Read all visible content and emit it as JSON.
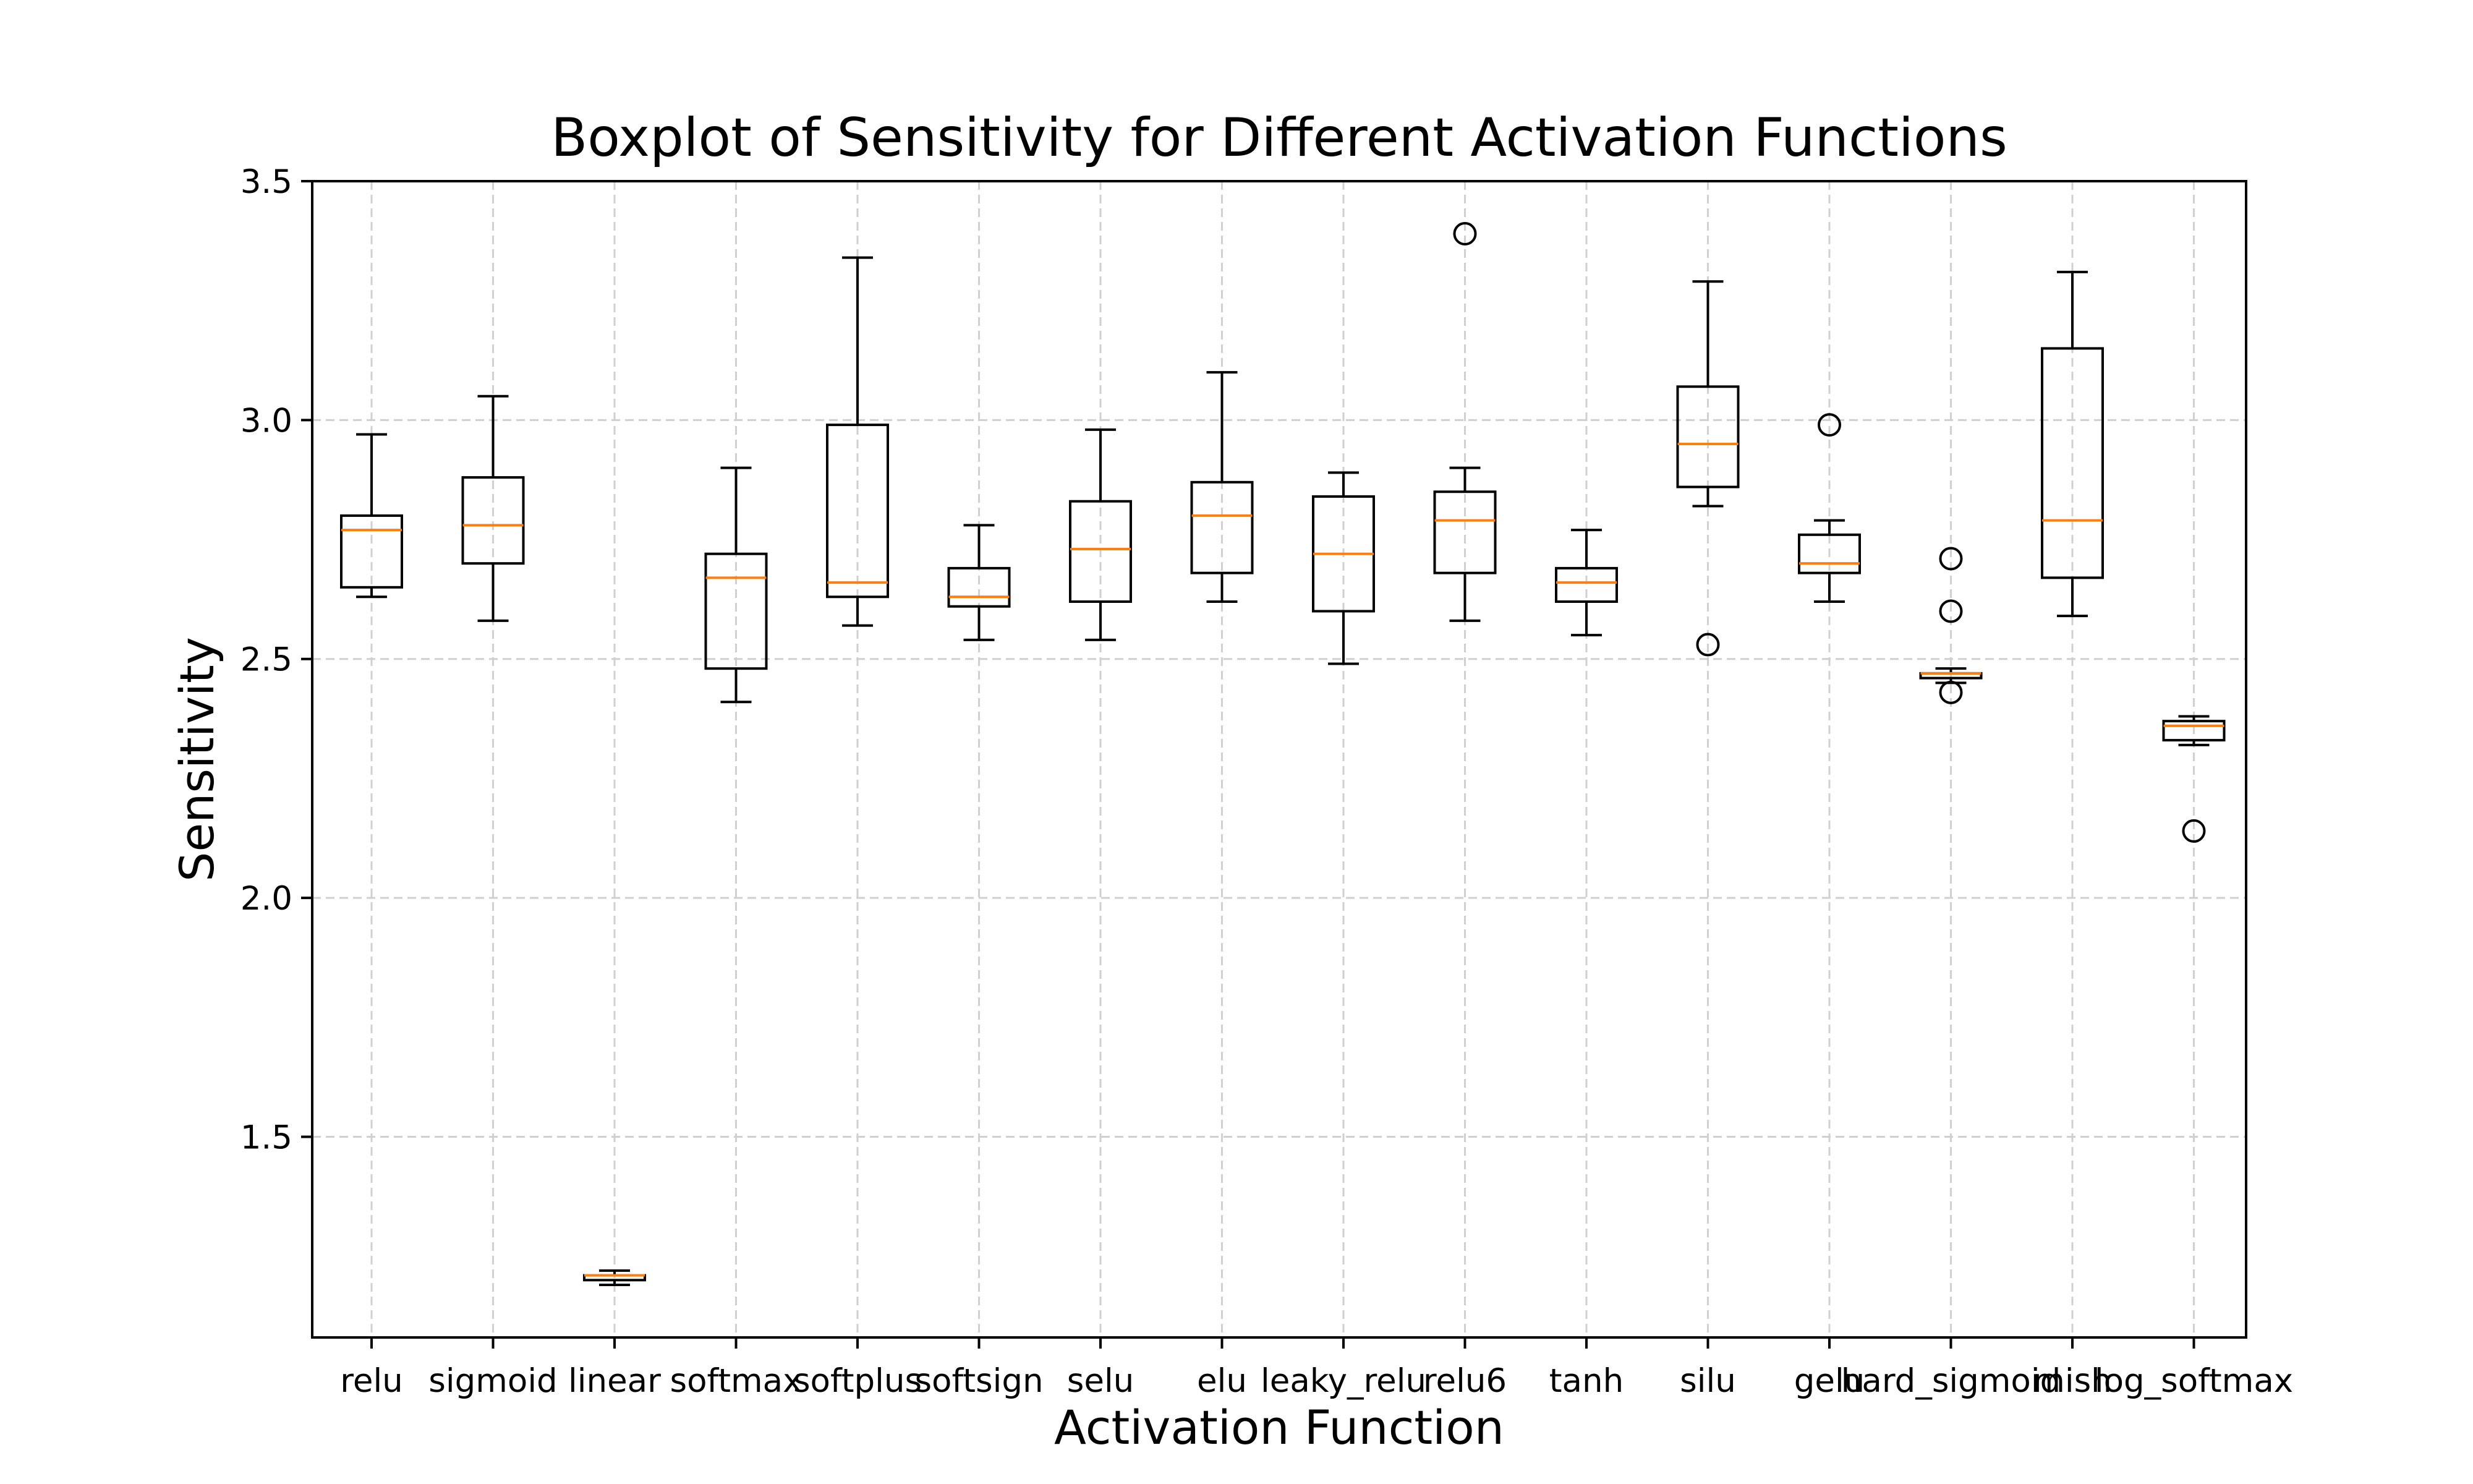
{
  "chart_data": {
    "type": "boxplot",
    "title": "Boxplot of Sensitivity for Different Activation Functions",
    "xlabel": "Activation Function",
    "ylabel": "Sensitivity",
    "ylim": [
      1.08,
      3.5
    ],
    "yticks": [
      "1.5",
      "2.0",
      "2.5",
      "3.0",
      "3.5"
    ],
    "grid": true,
    "colors": {
      "box": "#000000",
      "median": "#ff7f0e",
      "grid": "#d0d0d0"
    },
    "categories": [
      "relu",
      "sigmoid",
      "linear",
      "softmax",
      "softplus",
      "softsign",
      "selu",
      "elu",
      "leaky_relu",
      "relu6",
      "tanh",
      "silu",
      "gelu",
      "hard_sigmoid",
      "mish",
      "log_softmax"
    ],
    "boxes": [
      {
        "whisker_low": 2.63,
        "q1": 2.65,
        "median": 2.77,
        "q3": 2.8,
        "whisker_high": 2.97,
        "outliers": []
      },
      {
        "whisker_low": 2.58,
        "q1": 2.7,
        "median": 2.78,
        "q3": 2.88,
        "whisker_high": 3.05,
        "outliers": []
      },
      {
        "whisker_low": 1.19,
        "q1": 1.2,
        "median": 1.21,
        "q3": 1.21,
        "whisker_high": 1.22,
        "outliers": []
      },
      {
        "whisker_low": 2.41,
        "q1": 2.48,
        "median": 2.67,
        "q3": 2.72,
        "whisker_high": 2.9,
        "outliers": []
      },
      {
        "whisker_low": 2.57,
        "q1": 2.63,
        "median": 2.66,
        "q3": 2.99,
        "whisker_high": 3.34,
        "outliers": []
      },
      {
        "whisker_low": 2.54,
        "q1": 2.61,
        "median": 2.63,
        "q3": 2.69,
        "whisker_high": 2.78,
        "outliers": []
      },
      {
        "whisker_low": 2.54,
        "q1": 2.62,
        "median": 2.73,
        "q3": 2.83,
        "whisker_high": 2.98,
        "outliers": []
      },
      {
        "whisker_low": 2.62,
        "q1": 2.68,
        "median": 2.8,
        "q3": 2.87,
        "whisker_high": 3.1,
        "outliers": []
      },
      {
        "whisker_low": 2.49,
        "q1": 2.6,
        "median": 2.72,
        "q3": 2.84,
        "whisker_high": 2.89,
        "outliers": []
      },
      {
        "whisker_low": 2.58,
        "q1": 2.68,
        "median": 2.79,
        "q3": 2.85,
        "whisker_high": 2.9,
        "outliers": [
          3.39
        ]
      },
      {
        "whisker_low": 2.55,
        "q1": 2.62,
        "median": 2.66,
        "q3": 2.69,
        "whisker_high": 2.77,
        "outliers": []
      },
      {
        "whisker_low": 2.82,
        "q1": 2.86,
        "median": 2.95,
        "q3": 3.07,
        "whisker_high": 3.29,
        "outliers": [
          2.53
        ]
      },
      {
        "whisker_low": 2.62,
        "q1": 2.68,
        "median": 2.7,
        "q3": 2.76,
        "whisker_high": 2.79,
        "outliers": [
          2.99
        ]
      },
      {
        "whisker_low": 2.45,
        "q1": 2.46,
        "median": 2.47,
        "q3": 2.47,
        "whisker_high": 2.48,
        "outliers": [
          2.71,
          2.6,
          2.43
        ]
      },
      {
        "whisker_low": 2.59,
        "q1": 2.67,
        "median": 2.79,
        "q3": 3.15,
        "whisker_high": 3.31,
        "outliers": []
      },
      {
        "whisker_low": 2.32,
        "q1": 2.33,
        "median": 2.36,
        "q3": 2.37,
        "whisker_high": 2.38,
        "outliers": [
          2.14
        ]
      }
    ]
  }
}
